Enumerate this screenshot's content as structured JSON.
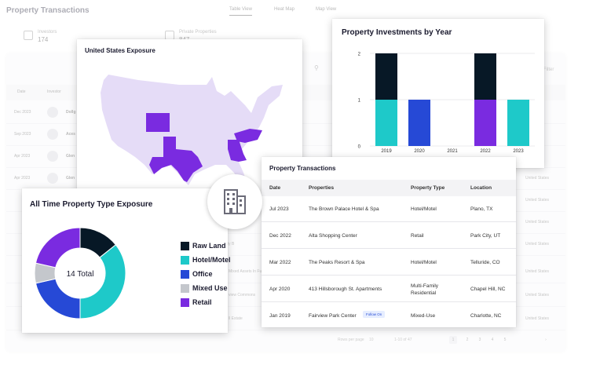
{
  "app": {
    "title": "Property Transactions",
    "tabs": [
      {
        "label": "Table View",
        "active": true
      },
      {
        "label": "Heat Map",
        "active": false
      },
      {
        "label": "Map View",
        "active": false
      }
    ],
    "stats": [
      {
        "label": "Investors",
        "value": "174"
      },
      {
        "label": "Private Properties",
        "value": "847"
      }
    ],
    "search_icon": "search-icon",
    "filter_label": "Filter",
    "columns": {
      "date": "Date",
      "investor": "Investor"
    },
    "rows": [
      {
        "date": "Dec 2023",
        "name": "Dollg",
        "extra": "",
        "location": ""
      },
      {
        "date": "Sep 2023",
        "name": "Aces",
        "extra": "",
        "location": ""
      },
      {
        "date": "Apr 2023",
        "name": "Glen",
        "extra": "",
        "location": ""
      },
      {
        "date": "Apr 2023",
        "name": "Glen",
        "extra": "",
        "location": "United States"
      },
      {
        "date": "",
        "name": "",
        "extra": "",
        "location": "United States"
      },
      {
        "date": "",
        "name": "",
        "extra": "",
        "location": "United States"
      },
      {
        "date": "",
        "name": "",
        "extra": "Brooks City B",
        "location": "United States"
      },
      {
        "date": "",
        "name": "",
        "extra": "Mixed Assets In Fu",
        "location": "United States"
      },
      {
        "date": "",
        "name": "",
        "extra": "view Commons",
        "location": "United States"
      },
      {
        "date": "",
        "name": "",
        "extra": "ll Estate",
        "location": "United States"
      }
    ],
    "pager": {
      "rows_per_page": "Rows per page",
      "per_page_value": "10",
      "range": "1-10 of 47",
      "pages": [
        "1",
        "2",
        "3",
        "4",
        "5"
      ]
    }
  },
  "map_card": {
    "title": "United States Exposure",
    "colors": {
      "base": "#e5dcf7",
      "highlight": "#7a2be0"
    }
  },
  "bar_card": {
    "title": "Property Investments by Year"
  },
  "donut_card": {
    "title": "All Time Property Type Exposure",
    "center_label": "14 Total",
    "legend": [
      {
        "label": "Raw Land",
        "color": "#071826"
      },
      {
        "label": "Hotel/Motel",
        "color": "#1ec9c9"
      },
      {
        "label": "Office",
        "color": "#2649d6"
      },
      {
        "label": "Mixed Use",
        "color": "#c4c7cc"
      },
      {
        "label": "Retail",
        "color": "#7a2be0"
      }
    ]
  },
  "table_card": {
    "title": "Property Transactions",
    "columns": [
      "Date",
      "Properties",
      "Property Type",
      "Location"
    ],
    "rows": [
      {
        "date": "Jul 2023",
        "property": "The Brown Palace Hotel & Spa",
        "type": "Hotel/Motel",
        "location": "Plano, TX",
        "badge": ""
      },
      {
        "date": "Dec 2022",
        "property": "Alta Shopping Center",
        "type": "Retail",
        "location": "Park City, UT",
        "badge": ""
      },
      {
        "date": "Mar 2022",
        "property": "The Peaks Resort & Spa",
        "type": "Hotel/Motel",
        "location": "Telluride, CO",
        "badge": ""
      },
      {
        "date": "Apr 2020",
        "property": "413 Hillsborough St. Apartments",
        "type": "Multi-Family Residential",
        "location": "Chapel Hill, NC",
        "badge": ""
      },
      {
        "date": "Jan 2019",
        "property": "Fairview Park Center",
        "type": "Mixed-Use",
        "location": "Charlotte, NC",
        "badge": "Follow On"
      }
    ]
  },
  "building_icon": "building-icon",
  "chart_data": [
    {
      "type": "bar",
      "title": "Property Investments by Year",
      "categories": [
        "2019",
        "2020",
        "2021",
        "2022",
        "2023"
      ],
      "stacked": true,
      "ylim": [
        0,
        2
      ],
      "yticks": [
        0,
        1,
        2
      ],
      "grid": true,
      "series": [
        {
          "color": "#1ec9c9",
          "values": [
            1,
            0,
            0,
            0,
            1
          ]
        },
        {
          "color": "#2649d6",
          "values": [
            0,
            1,
            0,
            0,
            0
          ]
        },
        {
          "color": "#7a2be0",
          "values": [
            0,
            0,
            0,
            1,
            0
          ]
        },
        {
          "color": "#071826",
          "values": [
            1,
            0,
            0,
            1,
            0
          ]
        }
      ]
    },
    {
      "type": "pie",
      "title": "All Time Property Type Exposure",
      "donut": true,
      "labels": [
        "Raw Land",
        "Hotel/Motel",
        "Office",
        "Mixed Use",
        "Retail"
      ],
      "values": [
        2,
        5,
        3,
        1,
        3
      ],
      "colors": [
        "#071826",
        "#1ec9c9",
        "#2649d6",
        "#c4c7cc",
        "#7a2be0"
      ]
    }
  ]
}
